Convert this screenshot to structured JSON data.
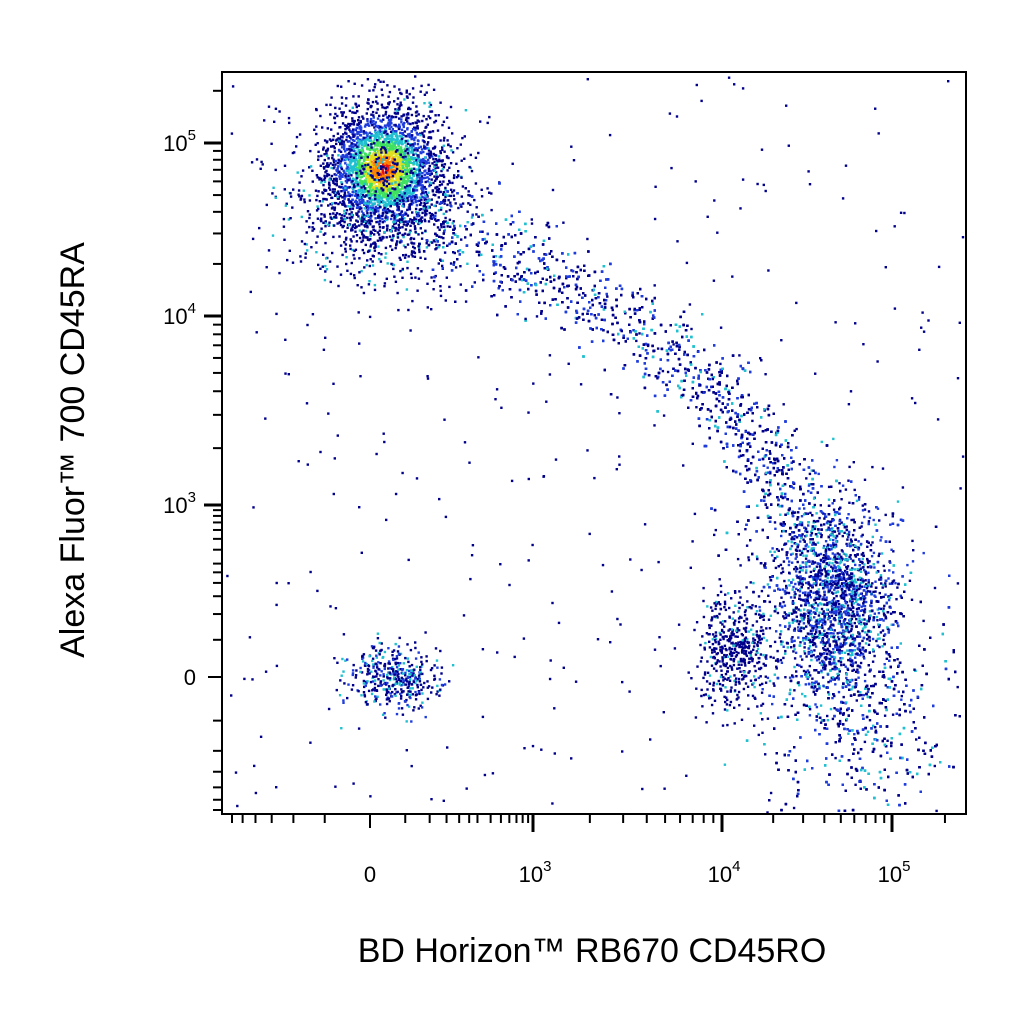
{
  "chart_data": {
    "type": "scatter",
    "style": "flow-cytometry-density-dot-plot",
    "xlabel": "BD Horizon™ RB670 CD45RO",
    "ylabel": "Alexa Fluor™ 700 CD45RA",
    "x_scale": "biexponential",
    "y_scale": "biexponential",
    "x_ticks": [
      {
        "label": "0",
        "value": 0
      },
      {
        "label": "10",
        "exp": "3",
        "value": 1000
      },
      {
        "label": "10",
        "exp": "4",
        "value": 10000
      },
      {
        "label": "10",
        "exp": "5",
        "value": 100000
      }
    ],
    "y_ticks": [
      {
        "label": "0",
        "value": 0
      },
      {
        "label": "10",
        "exp": "3",
        "value": 1000
      },
      {
        "label": "10",
        "exp": "4",
        "value": 10000
      },
      {
        "label": "10",
        "exp": "5",
        "value": 100000
      }
    ],
    "xlim": [
      -300,
      250000
    ],
    "ylim": [
      -300,
      250000
    ],
    "grid": false,
    "density_colors": [
      "#00008b",
      "#1e3cdc",
      "#20c0d0",
      "#40e060",
      "#e0e020",
      "#ff8000",
      "#e81010"
    ],
    "populations": [
      {
        "x_center": 50,
        "y_center": 70000,
        "description": "CD45RA+ CD45RO- cluster"
      },
      {
        "x_center": 3000,
        "y_center": 20000,
        "description": "transitional band"
      },
      {
        "x_center": 40000,
        "y_center": 400,
        "description": "CD45RA- CD45RO+ cluster"
      },
      {
        "x_center": 80,
        "y_center": 0,
        "description": "double-negative cluster"
      }
    ]
  }
}
